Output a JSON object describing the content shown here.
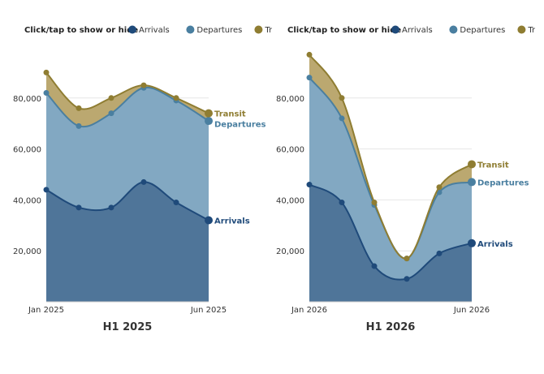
{
  "legend": {
    "prompt": "Click/tap to show or hide"
  },
  "series_meta": [
    {
      "key": "arrivals",
      "name": "Arrivals",
      "color": "#1f4a7a",
      "fill": "#4f7599"
    },
    {
      "key": "departures",
      "name": "Departures",
      "color": "#4a7fa0",
      "fill": "#82a8c2"
    },
    {
      "key": "transit",
      "name": "Transit",
      "color": "#8f7d32",
      "fill": "#bba870"
    }
  ],
  "chart_data": [
    {
      "type": "area",
      "stacked": true,
      "title": "H1 2025",
      "x_labels": [
        "Jan 2025",
        "",
        "",
        "",
        "",
        "Jun 2025"
      ],
      "y_ticks": [
        "20,000",
        "40,000",
        "60,000",
        "80,000"
      ],
      "ylim": [
        0,
        100000
      ],
      "series": [
        {
          "name": "Arrivals",
          "values": [
            44000,
            37000,
            37000,
            47000,
            39000,
            32000
          ]
        },
        {
          "name": "Departures",
          "values": [
            82000,
            69000,
            74000,
            84000,
            79000,
            71000
          ]
        },
        {
          "name": "Transit",
          "values": [
            90000,
            76000,
            80000,
            85000,
            80000,
            74000
          ]
        }
      ],
      "end_labels": [
        "Arrivals",
        "Departures",
        "Transit"
      ]
    },
    {
      "type": "area",
      "stacked": true,
      "title": "H1 2026",
      "x_labels": [
        "Jan 2026",
        "",
        "",
        "",
        "",
        "Jun 2026"
      ],
      "y_ticks": [
        "20,000",
        "40,000",
        "60,000",
        "80,000"
      ],
      "ylim": [
        0,
        100000
      ],
      "series": [
        {
          "name": "Arrivals",
          "values": [
            46000,
            39000,
            14000,
            9000,
            19000,
            23000
          ]
        },
        {
          "name": "Departures",
          "values": [
            88000,
            72000,
            38000,
            17000,
            43000,
            47000
          ]
        },
        {
          "name": "Transit",
          "values": [
            97000,
            80000,
            39000,
            17000,
            45000,
            54000
          ]
        }
      ],
      "end_labels": [
        "Arrivals",
        "Departures",
        "Transit"
      ]
    }
  ]
}
